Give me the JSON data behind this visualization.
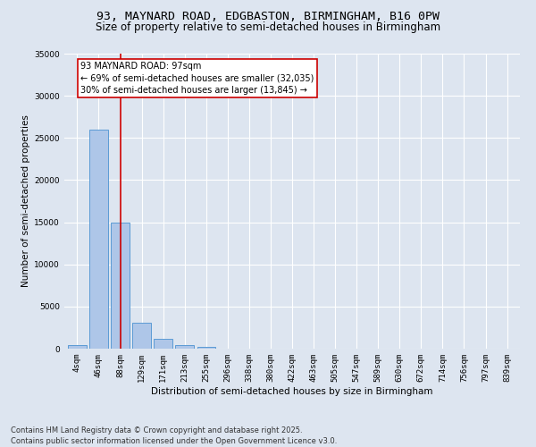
{
  "title_line1": "93, MAYNARD ROAD, EDGBASTON, BIRMINGHAM, B16 0PW",
  "title_line2": "Size of property relative to semi-detached houses in Birmingham",
  "xlabel": "Distribution of semi-detached houses by size in Birmingham",
  "ylabel": "Number of semi-detached properties",
  "categories": [
    "4sqm",
    "46sqm",
    "88sqm",
    "129sqm",
    "171sqm",
    "213sqm",
    "255sqm",
    "296sqm",
    "338sqm",
    "380sqm",
    "422sqm",
    "463sqm",
    "505sqm",
    "547sqm",
    "589sqm",
    "630sqm",
    "672sqm",
    "714sqm",
    "756sqm",
    "797sqm",
    "839sqm"
  ],
  "values": [
    400,
    26000,
    15000,
    3100,
    1200,
    450,
    200,
    50,
    0,
    0,
    0,
    0,
    0,
    0,
    0,
    0,
    0,
    0,
    0,
    0,
    0
  ],
  "bar_color": "#aec6e8",
  "bar_edge_color": "#5b9bd5",
  "vline_x_index": 2,
  "vline_color": "#cc0000",
  "annotation_title": "93 MAYNARD ROAD: 97sqm",
  "annotation_left": "← 69% of semi-detached houses are smaller (32,035)",
  "annotation_right": "30% of semi-detached houses are larger (13,845) →",
  "annotation_box_color": "#ffffff",
  "annotation_box_edge": "#cc0000",
  "ylim": [
    0,
    35000
  ],
  "yticks": [
    0,
    5000,
    10000,
    15000,
    20000,
    25000,
    30000,
    35000
  ],
  "bg_color": "#dde5f0",
  "plot_bg_color": "#dde5f0",
  "footer_line1": "Contains HM Land Registry data © Crown copyright and database right 2025.",
  "footer_line2": "Contains public sector information licensed under the Open Government Licence v3.0.",
  "title_fontsize": 9.5,
  "subtitle_fontsize": 8.5,
  "tick_fontsize": 6.5,
  "ylabel_fontsize": 7.5,
  "xlabel_fontsize": 7.5,
  "footer_fontsize": 6,
  "annot_fontsize": 7
}
